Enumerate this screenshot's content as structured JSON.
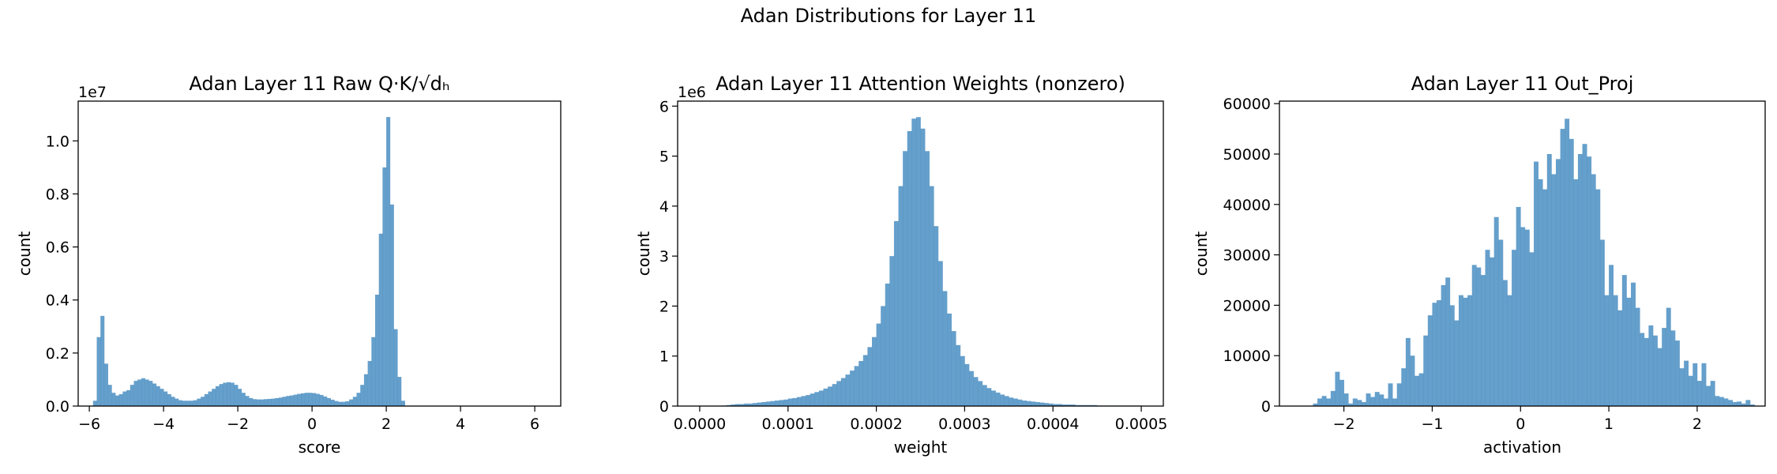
{
  "figure": {
    "suptitle": "Adan Distributions for Layer 11",
    "bar_color": "#4a8ec2",
    "bar_opacity": 0.85
  },
  "chart_data": [
    {
      "type": "bar",
      "title": "Adan Layer 11 Raw Q·K/√dₕ",
      "xlabel": "score",
      "ylabel": "count",
      "y_offset_label": "1e7",
      "xlim": [
        -6.3,
        6.7
      ],
      "ylim": [
        0,
        1.15
      ],
      "xticks": [
        -6,
        -4,
        -2,
        0,
        2,
        4,
        6
      ],
      "xtick_labels": [
        "−6",
        "−4",
        "−2",
        "0",
        "2",
        "4",
        "6"
      ],
      "yticks": [
        0.0,
        0.2,
        0.4,
        0.6,
        0.8,
        1.0
      ],
      "ytick_labels": [
        "0.0",
        "0.2",
        "0.4",
        "0.6",
        "0.8",
        "1.0"
      ],
      "bin_start": -5.9,
      "bin_width": 0.1,
      "values": [
        0.02,
        0.26,
        0.34,
        0.16,
        0.08,
        0.05,
        0.04,
        0.045,
        0.055,
        0.06,
        0.08,
        0.095,
        0.1,
        0.105,
        0.1,
        0.095,
        0.085,
        0.075,
        0.065,
        0.055,
        0.045,
        0.035,
        0.028,
        0.022,
        0.02,
        0.02,
        0.02,
        0.022,
        0.028,
        0.035,
        0.045,
        0.055,
        0.065,
        0.075,
        0.083,
        0.088,
        0.09,
        0.088,
        0.08,
        0.065,
        0.05,
        0.038,
        0.03,
        0.026,
        0.025,
        0.025,
        0.026,
        0.027,
        0.028,
        0.03,
        0.032,
        0.035,
        0.038,
        0.04,
        0.043,
        0.046,
        0.048,
        0.05,
        0.05,
        0.049,
        0.046,
        0.042,
        0.036,
        0.03,
        0.024,
        0.019,
        0.016,
        0.016,
        0.018,
        0.025,
        0.035,
        0.05,
        0.08,
        0.12,
        0.17,
        0.26,
        0.42,
        0.65,
        0.9,
        1.09,
        0.76,
        0.29,
        0.11,
        0.02
      ]
    },
    {
      "type": "bar",
      "title": "Adan Layer 11 Attention Weights (nonzero)",
      "xlabel": "weight",
      "ylabel": "count",
      "y_offset_label": "1e6",
      "xlim": [
        -2.5e-05,
        0.000525
      ],
      "ylim": [
        0,
        6.1
      ],
      "xticks": [
        0.0,
        0.0001,
        0.0002,
        0.0003,
        0.0004,
        0.0005
      ],
      "xtick_labels": [
        "0.0000",
        "0.0001",
        "0.0002",
        "0.0003",
        "0.0004",
        "0.0005"
      ],
      "yticks": [
        0,
        1,
        2,
        3,
        4,
        5,
        6
      ],
      "ytick_labels": [
        "0",
        "1",
        "2",
        "3",
        "4",
        "5",
        "6"
      ],
      "bin_start": 0.0,
      "bin_width": 5e-06,
      "values": [
        0.0,
        0.0,
        0.0,
        0.0,
        0.0,
        0.01,
        0.02,
        0.03,
        0.04,
        0.04,
        0.05,
        0.05,
        0.06,
        0.07,
        0.08,
        0.09,
        0.1,
        0.11,
        0.12,
        0.13,
        0.15,
        0.16,
        0.18,
        0.2,
        0.22,
        0.25,
        0.28,
        0.31,
        0.35,
        0.39,
        0.44,
        0.5,
        0.56,
        0.63,
        0.71,
        0.8,
        0.9,
        1.02,
        1.18,
        1.38,
        1.65,
        2.0,
        2.45,
        3.0,
        3.7,
        4.4,
        5.1,
        5.5,
        5.75,
        5.78,
        5.55,
        5.1,
        4.4,
        3.6,
        2.9,
        2.3,
        1.85,
        1.5,
        1.22,
        1.0,
        0.84,
        0.7,
        0.58,
        0.5,
        0.42,
        0.36,
        0.31,
        0.27,
        0.23,
        0.2,
        0.17,
        0.15,
        0.13,
        0.11,
        0.1,
        0.09,
        0.08,
        0.07,
        0.06,
        0.05,
        0.04,
        0.04,
        0.03,
        0.03,
        0.03,
        0.02,
        0.02,
        0.02,
        0.02,
        0.02,
        0.01,
        0.01,
        0.01,
        0.01,
        0.01,
        0.01,
        0.01,
        0.01,
        0.01,
        0.01
      ]
    },
    {
      "type": "bar",
      "title": "Adan Layer 11 Out_Proj",
      "xlabel": "activation",
      "ylabel": "count",
      "xlim": [
        -2.73,
        2.77
      ],
      "ylim": [
        0,
        60500
      ],
      "xticks": [
        -2,
        -1,
        0,
        1,
        2
      ],
      "xtick_labels": [
        "−2",
        "−1",
        "0",
        "1",
        "2"
      ],
      "yticks": [
        0,
        10000,
        20000,
        30000,
        40000,
        50000,
        60000
      ],
      "ytick_labels": [
        "0",
        "10000",
        "20000",
        "30000",
        "40000",
        "50000",
        "60000"
      ],
      "bin_start": -2.35,
      "bin_width": 0.05,
      "values": [
        500,
        1500,
        2000,
        1500,
        3000,
        6800,
        5200,
        2500,
        500,
        1500,
        1200,
        800,
        2500,
        1800,
        2800,
        2300,
        1500,
        4500,
        1500,
        4500,
        7500,
        13500,
        10000,
        6000,
        6500,
        14000,
        18000,
        20500,
        21000,
        24000,
        25500,
        20000,
        17000,
        22000,
        21500,
        22000,
        28000,
        27500,
        26000,
        31000,
        29500,
        37500,
        33000,
        25000,
        22000,
        31000,
        39500,
        35500,
        35000,
        30500,
        48500,
        45000,
        43000,
        50000,
        46000,
        49000,
        55000,
        57000,
        53000,
        45000,
        50000,
        52000,
        49500,
        46000,
        43000,
        33000,
        22000,
        28000,
        22000,
        19000,
        26000,
        21500,
        24500,
        19500,
        14500,
        13500,
        16000,
        14000,
        11500,
        15500,
        19500,
        15000,
        13000,
        7500,
        9000,
        6000,
        8500,
        5000,
        8500,
        4000,
        5000,
        2000,
        1800,
        1500,
        1200,
        800,
        900,
        500,
        1200,
        300
      ]
    }
  ]
}
